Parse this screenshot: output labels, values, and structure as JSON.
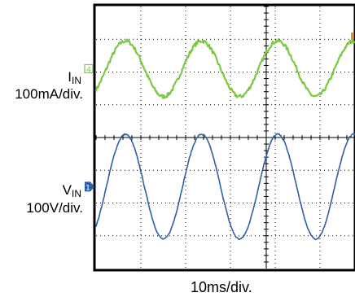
{
  "chart_data": {
    "type": "line",
    "title": "",
    "xlabel": "10ms/div.",
    "x_divisions": 10,
    "y_divisions": 8,
    "grid": true,
    "series": [
      {
        "name": "I_IN",
        "label_main": "I",
        "label_sub": "IN",
        "scale": "100mA/div.",
        "marker": "4",
        "color": "#7ac943",
        "amplitude_div": 0.85,
        "offset_div": 2.1,
        "period_div": 1.7,
        "phase_div": 0.23,
        "noise_div": 0.06
      },
      {
        "name": "V_IN",
        "label_main": "V",
        "label_sub": "IN",
        "scale": "100V/div.",
        "marker": "1",
        "color": "#2e5fa8",
        "amplitude_div": 1.6,
        "offset_div": -1.5,
        "period_div": 1.7,
        "phase_div": 0.23,
        "noise_div": 0.02
      }
    ],
    "trigger_marker_color": "#f08a24"
  }
}
